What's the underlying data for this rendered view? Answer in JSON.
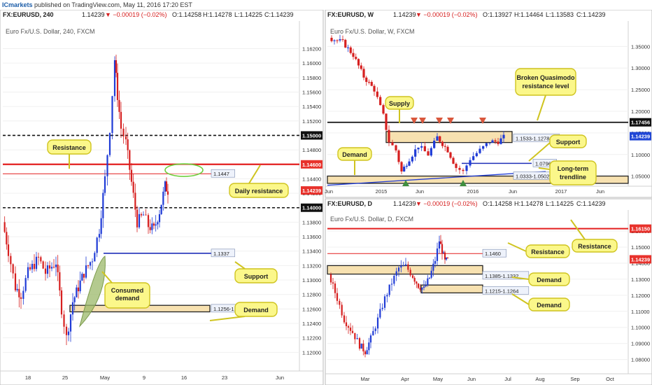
{
  "header": {
    "brand": "ICmarkets",
    "published": "published on TradingView.com, May 11, 2016 17:20 EST"
  },
  "colors": {
    "up": "#1f3bd6",
    "down": "#d61f1f",
    "price_tag": "#e8322c",
    "supply_fill": "#f7e1b0",
    "callout_fill": "#fbf78a",
    "callout_border": "#cfc420",
    "resistance": "#e31f1f",
    "trendline": "#1f3bd6",
    "consumed_fill": "#9bb86a",
    "zone_border": "#222222"
  },
  "charts": [
    {
      "id": "h4",
      "ohlc": {
        "symbol": "FX:EURUSD, 240",
        "last": "1.14239",
        "chg": "▼ −0.00019 (−0.02%)",
        "o": "O:1.14258",
        "h": "H:1.14278",
        "l": "L:1.14225",
        "c": "C:1.14239"
      },
      "subtitle": "Euro Fx/U.S. Dollar, 240, FXCM",
      "yaxis": {
        "min": 1.118,
        "max": 1.1635,
        "ticks": [
          "1.16200",
          "1.16000",
          "1.15800",
          "1.15600",
          "1.15400",
          "1.15200",
          "1.15000",
          "1.14800",
          "1.14600",
          "1.14400",
          "1.14200",
          "1.14000",
          "1.13800",
          "1.13600",
          "1.13400",
          "1.13200",
          "1.13000",
          "1.12800",
          "1.12600",
          "1.12400",
          "1.12200",
          "1.12000"
        ]
      },
      "xaxis": {
        "ticks": [
          "18",
          "25",
          "May",
          "9",
          "16",
          "23",
          "Jun"
        ]
      },
      "price_labels": [
        {
          "text": "1.15000",
          "value": 1.15,
          "style": "dark"
        },
        {
          "text": "1.14600",
          "value": 1.146,
          "style": "red"
        },
        {
          "text": "1.14239",
          "value": 1.14239,
          "style": "red"
        },
        {
          "text": "1.14000",
          "value": 1.14,
          "style": "dark"
        }
      ],
      "levels": [
        {
          "value": 1.15,
          "style": "dashed"
        },
        {
          "value": 1.146,
          "style": "red"
        },
        {
          "value": 1.1447,
          "style": "thinred"
        },
        {
          "value": 1.14,
          "style": "dashed"
        }
      ],
      "level_labels": [
        {
          "text": "1.1447",
          "value": 1.1447
        },
        {
          "text": "1.1337",
          "value": 1.1337
        },
        {
          "text": "1.1256-1.1265",
          "value": 1.12605
        }
      ],
      "zones": [
        {
          "from": 1.1256,
          "to": 1.1265
        }
      ],
      "callouts": [
        "Resistance",
        "Daily resistance",
        "Support",
        "Consumed demand",
        "Demand"
      ]
    },
    {
      "id": "weekly",
      "ohlc": {
        "symbol": "FX:EURUSD, W",
        "last": "1.14239",
        "chg": "▼ −0.00019 (−0.02%)",
        "o": "O:1.13927",
        "h": "H:1.14464",
        "l": "L:1.13583",
        "c": "C:1.14239"
      },
      "subtitle": "Euro Fx/U.S. Dollar, W, FXCM",
      "yaxis": {
        "min": 1.03,
        "max": 1.37,
        "ticks": [
          "1.35000",
          "1.30000",
          "1.25000",
          "1.20000",
          "1.15000",
          "1.10000",
          "1.05000"
        ]
      },
      "xaxis": {
        "ticks": [
          "Jun",
          "2015",
          "Jun",
          "2016",
          "Jun",
          "2017",
          "Jun"
        ]
      },
      "price_labels": [
        {
          "text": "1.17456",
          "value": 1.17456,
          "style": "dark"
        },
        {
          "text": "1.14239",
          "value": 1.14239,
          "style": "blue"
        }
      ],
      "level_labels": [
        {
          "text": "1.1533-1.1278",
          "value": 1.1533
        },
        {
          "text": "1.0796",
          "value": 1.0796
        },
        {
          "text": "1.0333-1.0502",
          "value": 1.0502
        }
      ],
      "zones": [
        {
          "from": 1.1278,
          "to": 1.1533
        },
        {
          "from": 1.0333,
          "to": 1.0502
        }
      ],
      "callouts": [
        "Supply",
        "Broken Quasimodo resistance level",
        "Support",
        "Demand",
        "Long-term trendline"
      ]
    },
    {
      "id": "daily",
      "ohlc": {
        "symbol": "FX:EURUSD, D",
        "last": "1.14239",
        "chg": "▼ −0.00019 (−0.02%)",
        "o": "O:1.14258",
        "h": "H:1.14278",
        "l": "L:1.14225",
        "c": "C:1.14239"
      },
      "subtitle": "Euro Fx/U.S. Dollar, D, FXCM",
      "yaxis": {
        "min": 1.072,
        "max": 1.167,
        "ticks": [
          "1.16000",
          "1.15000",
          "1.14000",
          "1.13000",
          "1.12000",
          "1.11000",
          "1.10000",
          "1.09000",
          "1.08000"
        ]
      },
      "xaxis": {
        "ticks": [
          "Mar",
          "Apr",
          "May",
          "Jun",
          "Jul",
          "Aug",
          "Sep",
          "Oct"
        ]
      },
      "price_labels": [
        {
          "text": "1.16150",
          "value": 1.1615,
          "style": "red"
        },
        {
          "text": "1.14239",
          "value": 1.14239,
          "style": "red"
        }
      ],
      "level_labels": [
        {
          "text": "1.1460",
          "value": 1.146
        },
        {
          "text": "1.1385-1.1332",
          "value": 1.1332
        },
        {
          "text": "1.1215-1.1264",
          "value": 1.1215
        }
      ],
      "zones": [
        {
          "from": 1.1332,
          "to": 1.1385
        },
        {
          "from": 1.1215,
          "to": 1.1264
        }
      ],
      "callouts": [
        "Resistance",
        "Resistance",
        "Demand",
        "Demand"
      ]
    }
  ]
}
